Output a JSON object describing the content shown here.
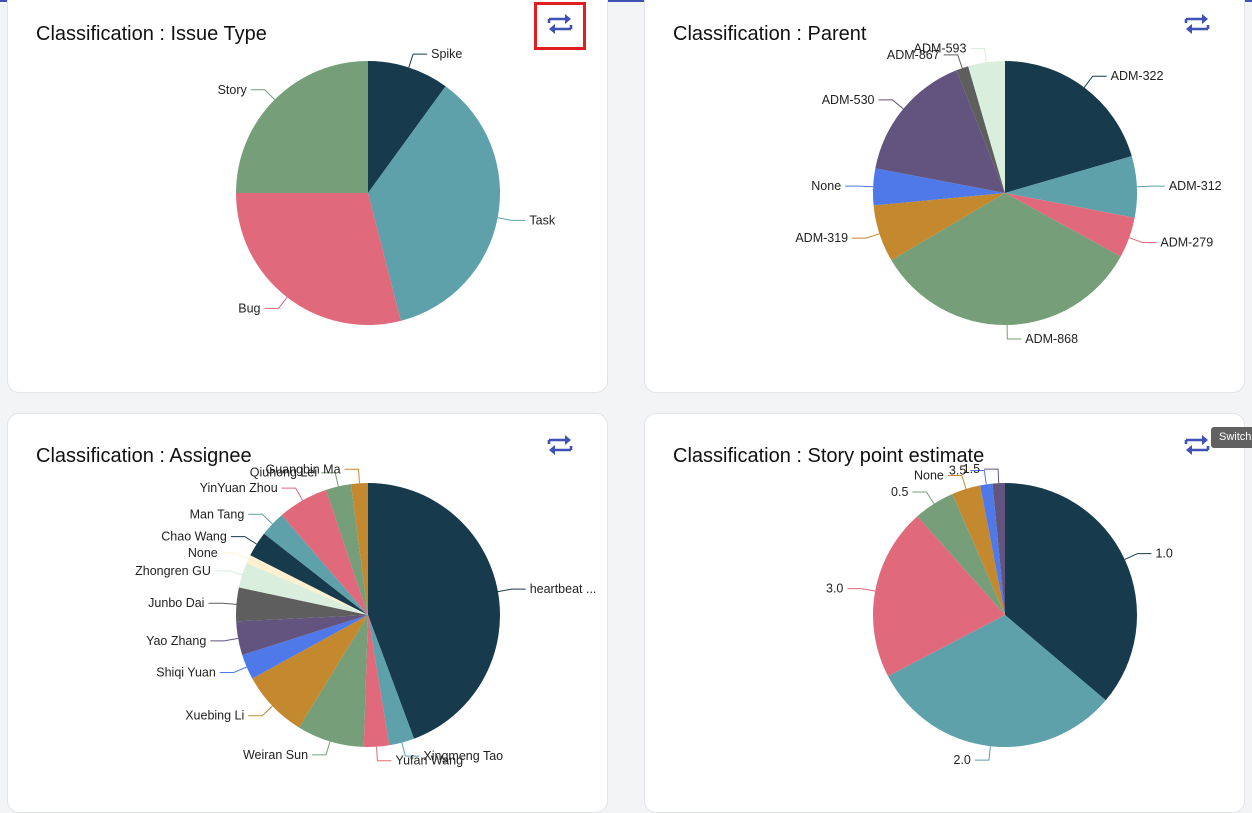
{
  "colors": {
    "palette": [
      "#173a4c",
      "#5ea1aa",
      "#e06a7c",
      "#759e79",
      "#c4882f",
      "#4f79e9",
      "#62547e",
      "#5e5e5e",
      "#daeedd",
      "#fff0cf"
    ],
    "highlight_border": "#e02020",
    "icon": "#3f51b5"
  },
  "tooltip": {
    "text": "Switch"
  },
  "cards": [
    {
      "title": "Classification : Issue Type",
      "switch_icon": "swap-arrows-icon",
      "chart_data": {
        "type": "pie",
        "title": "Classification : Issue Type",
        "slices": [
          {
            "label": "Spike",
            "value": 10,
            "color": "#173a4c"
          },
          {
            "label": "Task",
            "value": 36,
            "color": "#5ea1aa"
          },
          {
            "label": "Bug",
            "value": 29,
            "color": "#e06a7c"
          },
          {
            "label": "Story",
            "value": 25,
            "color": "#759e79"
          }
        ]
      }
    },
    {
      "title": "Classification : Parent",
      "switch_icon": "swap-arrows-icon",
      "chart_data": {
        "type": "pie",
        "title": "Classification : Parent",
        "slices": [
          {
            "label": "ADM-322",
            "value": 20.5,
            "color": "#173a4c"
          },
          {
            "label": "ADM-312",
            "value": 7.5,
            "color": "#5ea1aa"
          },
          {
            "label": "ADM-279",
            "value": 5,
            "color": "#e06a7c"
          },
          {
            "label": "ADM-868",
            "value": 33.5,
            "color": "#759e79"
          },
          {
            "label": "ADM-319",
            "value": 7,
            "color": "#c4882f"
          },
          {
            "label": "None",
            "value": 4.5,
            "color": "#4f79e9"
          },
          {
            "label": "ADM-530",
            "value": 16,
            "color": "#62547e"
          },
          {
            "label": "ADM-867",
            "value": 1.5,
            "color": "#5e5e5e"
          },
          {
            "label": "ADM-593",
            "value": 4.5,
            "color": "#daeedd"
          }
        ]
      }
    },
    {
      "title": "Classification : Assignee",
      "switch_icon": "swap-arrows-icon",
      "chart_data": {
        "type": "pie",
        "title": "Classification : Assignee",
        "slices": [
          {
            "label": "heartbeat ...",
            "value": 43,
            "color": "#173a4c"
          },
          {
            "label": "Xingmeng Tao",
            "value": 3,
            "color": "#5ea1aa"
          },
          {
            "label": "Yufan Wang",
            "value": 3,
            "color": "#e06a7c"
          },
          {
            "label": "Weiran Sun",
            "value": 8,
            "color": "#759e79"
          },
          {
            "label": "Xuebing Li",
            "value": 8,
            "color": "#c4882f"
          },
          {
            "label": "Shiqi Yuan",
            "value": 3,
            "color": "#4f79e9"
          },
          {
            "label": "Yao Zhang",
            "value": 4,
            "color": "#62547e"
          },
          {
            "label": "Junbo Dai",
            "value": 4,
            "color": "#5e5e5e"
          },
          {
            "label": "Zhongren GU",
            "value": 3,
            "color": "#daeedd"
          },
          {
            "label": "None",
            "value": 1,
            "color": "#fff0cf"
          },
          {
            "label": "Chao Wang",
            "value": 3,
            "color": "#173a4c"
          },
          {
            "label": "Man Tang",
            "value": 3,
            "color": "#5ea1aa"
          },
          {
            "label": "YinYuan Zhou",
            "value": 6,
            "color": "#e06a7c"
          },
          {
            "label": "Qiuhong Lei",
            "value": 3,
            "color": "#759e79"
          },
          {
            "label": "Guangbin Ma",
            "value": 2,
            "color": "#c4882f"
          }
        ]
      }
    },
    {
      "title": "Classification : Story point estimate",
      "switch_icon": "swap-arrows-icon",
      "chart_data": {
        "type": "pie",
        "title": "Classification : Story point estimate",
        "slices": [
          {
            "label": "1.0",
            "value": 36,
            "color": "#173a4c"
          },
          {
            "label": "2.0",
            "value": 31,
            "color": "#5ea1aa"
          },
          {
            "label": "3.0",
            "value": 21,
            "color": "#e06a7c"
          },
          {
            "label": "0.5",
            "value": 5,
            "color": "#759e79"
          },
          {
            "label": "None",
            "value": 3.5,
            "color": "#c4882f"
          },
          {
            "label": "3.5",
            "value": 1.5,
            "color": "#4f79e9"
          },
          {
            "label": "1.5",
            "value": 1.5,
            "color": "#62547e"
          }
        ]
      }
    }
  ]
}
